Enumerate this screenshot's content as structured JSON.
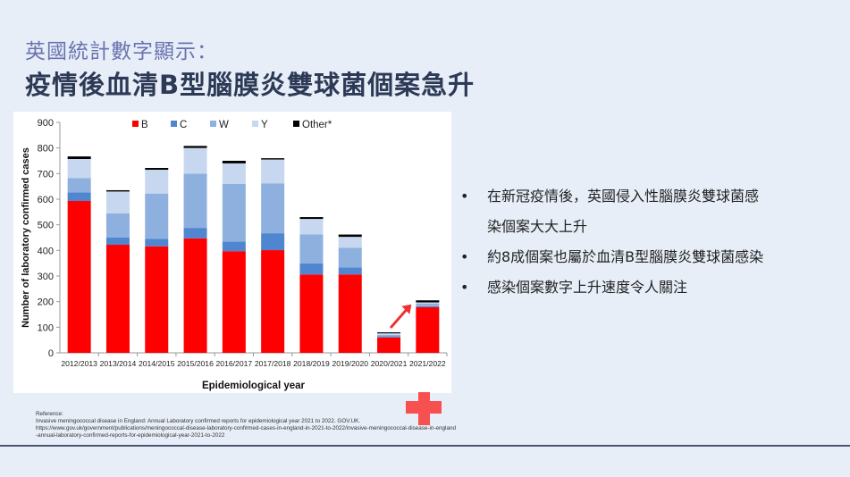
{
  "title": {
    "line1": "英國統計數字顯示：",
    "line2": "疫情後血清B型腦膜炎雙球菌個案急升"
  },
  "bullets": [
    "在新冠疫情後，英國侵入性腦膜炎雙球菌感",
    "染個案大大上升",
    "約8成個案也屬於血清B型腦膜炎雙球菌感染",
    "感染個案數字上升速度令人關注"
  ],
  "bullet_marks": [
    true,
    false,
    true,
    true
  ],
  "reference": {
    "heading": "Reference:",
    "line1": "Invasive meningococcal disease in England: Annual Laboratory confirmed reports for epidemiological year 2021 to 2022. GOV.UK.",
    "line2": "https://www.gov.uk/government/publications/meningococcal-disease-laboratory-confirmed-cases-in-england-in-2021-to-2022/invasive-meningococcal-disease-in-england-annual-laboratory-confirmed-reports-for-epidemiological-year-2021-to-2022"
  },
  "chart_data": {
    "type": "bar",
    "stacked": true,
    "xlabel": "Epidemiological year",
    "ylabel": "Number of laboratory confirmed cases",
    "ylim": [
      0,
      900
    ],
    "yticks": [
      0,
      100,
      200,
      300,
      400,
      500,
      600,
      700,
      800,
      900
    ],
    "legend_position": "top",
    "categories": [
      "2012/2013",
      "2013/2014",
      "2014/2015",
      "2015/2016",
      "2016/2017",
      "2017/2018",
      "2018/2019",
      "2019/2020",
      "2020/2021",
      "2021/2022"
    ],
    "series": [
      {
        "name": "B",
        "color": "#ff0000",
        "values": [
          593,
          422,
          416,
          447,
          397,
          401,
          306,
          306,
          60,
          178
        ]
      },
      {
        "name": "C",
        "color": "#4f86cf",
        "values": [
          34,
          28,
          29,
          41,
          38,
          66,
          43,
          27,
          5,
          4
        ]
      },
      {
        "name": "W",
        "color": "#8eb0de",
        "values": [
          55,
          95,
          177,
          212,
          225,
          195,
          114,
          77,
          5,
          10
        ]
      },
      {
        "name": "Y",
        "color": "#c6d7ef",
        "values": [
          75,
          85,
          93,
          100,
          80,
          93,
          60,
          43,
          6,
          5
        ]
      },
      {
        "name": "Other*",
        "color": "#000000",
        "values": [
          10,
          5,
          7,
          8,
          10,
          5,
          7,
          9,
          4,
          8
        ]
      }
    ],
    "annotation": "red arrow pointing up from 2020/2021 to 2021/2022"
  }
}
